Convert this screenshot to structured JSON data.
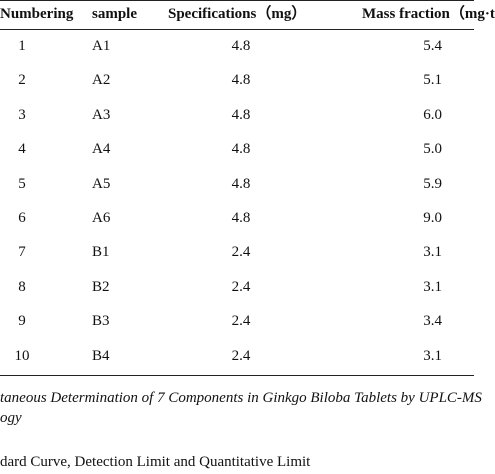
{
  "table": {
    "headers": [
      "Numbering",
      "sample",
      "Specifications（mg）",
      "Mass fraction（mg·t"
    ],
    "rows": [
      [
        "1",
        "A1",
        "4.8",
        "5.4"
      ],
      [
        "2",
        "A2",
        "4.8",
        "5.1"
      ],
      [
        "3",
        "A3",
        "4.8",
        "6.0"
      ],
      [
        "4",
        "A4",
        "4.8",
        "5.0"
      ],
      [
        "5",
        "A5",
        "4.8",
        "5.9"
      ],
      [
        "6",
        "A6",
        "4.8",
        "9.0"
      ],
      [
        "7",
        "B1",
        "2.4",
        "3.1"
      ],
      [
        "8",
        "B2",
        "2.4",
        "3.1"
      ],
      [
        "9",
        "B3",
        "2.4",
        "3.4"
      ],
      [
        "10",
        "B4",
        "2.4",
        "3.1"
      ]
    ]
  },
  "caption": {
    "lines": [
      "taneous Determination of 7 Components in Ginkgo Biloba Tablets by UPLC-MS",
      "ogy"
    ],
    "heading": "dard Curve, Detection Limit and Quantitative Limit"
  }
}
